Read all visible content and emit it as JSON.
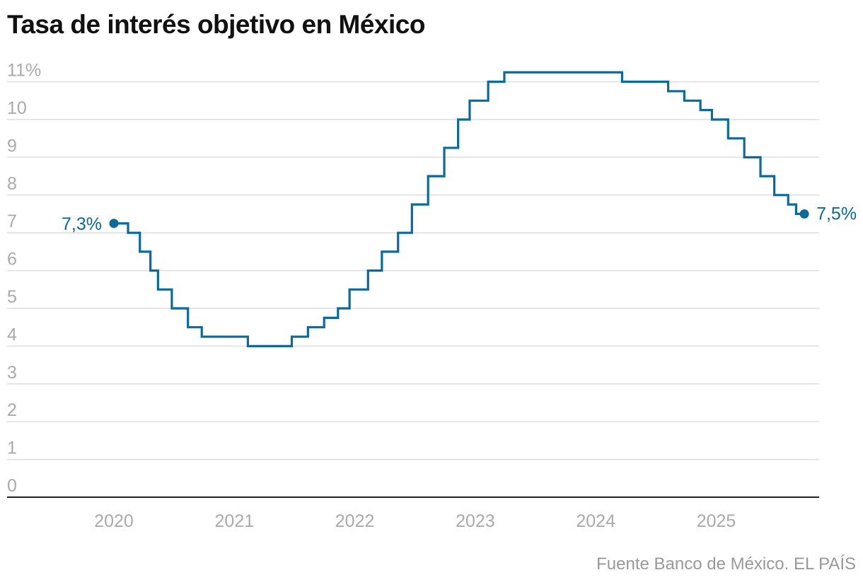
{
  "chart_data": {
    "type": "line",
    "step": true,
    "title": "Tasa de interés objetivo en México",
    "source": "Fuente Banco de México. EL PAÍS",
    "color": "#0a6a9b",
    "ylim": [
      0,
      11.25
    ],
    "yticks": [
      0,
      1,
      2,
      3,
      4,
      5,
      6,
      7,
      8,
      9,
      10,
      11
    ],
    "ytick_labels": [
      "0",
      "1",
      "2",
      "3",
      "4",
      "5",
      "6",
      "7",
      "8",
      "9",
      "10",
      "11%"
    ],
    "xticks": [
      "2020",
      "2021",
      "2022",
      "2023",
      "2024",
      "2025"
    ],
    "grid": true,
    "start_label": "7,3%",
    "end_label": "7,5%",
    "points": [
      [
        "2020-01-01",
        7.25
      ],
      [
        "2020-02-13",
        7.0
      ],
      [
        "2020-03-20",
        6.5
      ],
      [
        "2020-04-21",
        6.0
      ],
      [
        "2020-05-14",
        5.5
      ],
      [
        "2020-06-25",
        5.0
      ],
      [
        "2020-08-13",
        4.5
      ],
      [
        "2020-09-24",
        4.25
      ],
      [
        "2021-02-11",
        4.0
      ],
      [
        "2021-06-24",
        4.25
      ],
      [
        "2021-08-12",
        4.5
      ],
      [
        "2021-09-30",
        4.75
      ],
      [
        "2021-11-11",
        5.0
      ],
      [
        "2021-12-16",
        5.5
      ],
      [
        "2022-02-10",
        6.0
      ],
      [
        "2022-03-24",
        6.5
      ],
      [
        "2022-05-12",
        7.0
      ],
      [
        "2022-06-23",
        7.75
      ],
      [
        "2022-08-11",
        8.5
      ],
      [
        "2022-09-29",
        9.25
      ],
      [
        "2022-11-10",
        10.0
      ],
      [
        "2022-12-15",
        10.5
      ],
      [
        "2023-02-09",
        11.0
      ],
      [
        "2023-03-30",
        11.25
      ],
      [
        "2024-03-21",
        11.0
      ],
      [
        "2024-08-08",
        10.75
      ],
      [
        "2024-09-26",
        10.5
      ],
      [
        "2024-11-14",
        10.25
      ],
      [
        "2024-12-19",
        10.0
      ],
      [
        "2025-02-06",
        9.5
      ],
      [
        "2025-03-27",
        9.0
      ],
      [
        "2025-05-15",
        8.5
      ],
      [
        "2025-06-26",
        8.0
      ],
      [
        "2025-08-07",
        7.75
      ],
      [
        "2025-08-31",
        7.5
      ],
      [
        "2025-09-25",
        7.5
      ]
    ]
  }
}
